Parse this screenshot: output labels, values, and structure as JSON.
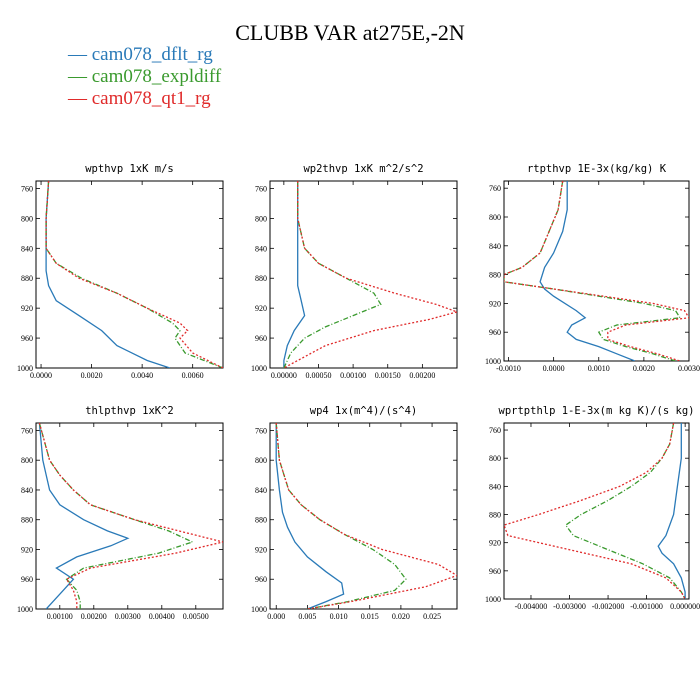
{
  "title": "CLUBB VAR at275E,-2N",
  "legend": [
    {
      "name": "cam078_dflt_rg",
      "color": "#2a7ab8"
    },
    {
      "name": "cam078_expldiff",
      "color": "#3a9a2e"
    },
    {
      "name": "cam078_qt1_rg",
      "color": "#e02b2b"
    }
  ],
  "chart_data": [
    {
      "type": "line",
      "title": "wpthvp  1xK m/s",
      "xlim": [
        -0.0002,
        0.0072
      ],
      "ylim": [
        1000,
        750
      ],
      "x_ticks": [
        "0.0000",
        "0.0020",
        "0.0040",
        "0.0060"
      ],
      "x_tick_values": [
        0,
        0.002,
        0.004,
        0.006
      ],
      "y_ticks": [
        "760",
        "800",
        "840",
        "880",
        "920",
        "960",
        "1000"
      ],
      "series": [
        {
          "name": "cam078_dflt_rg",
          "y": [
            750,
            800,
            840,
            870,
            890,
            910,
            930,
            950,
            970,
            990,
            1000
          ],
          "x": [
            0.0003,
            0.0002,
            0.0002,
            0.0002,
            0.0003,
            0.0006,
            0.0015,
            0.0024,
            0.003,
            0.0042,
            0.0051
          ]
        },
        {
          "name": "cam078_expldiff",
          "y": [
            750,
            800,
            840,
            860,
            880,
            900,
            920,
            940,
            950,
            960,
            980,
            1000
          ],
          "x": [
            0.0003,
            0.0002,
            0.0002,
            0.0006,
            0.0016,
            0.003,
            0.0042,
            0.0052,
            0.0055,
            0.0053,
            0.0057,
            0.0072
          ]
        },
        {
          "name": "cam078_qt1_rg",
          "y": [
            750,
            800,
            840,
            860,
            880,
            900,
            920,
            940,
            950,
            960,
            980,
            1000
          ],
          "x": [
            0.0003,
            0.0002,
            0.0002,
            0.0006,
            0.0015,
            0.003,
            0.0042,
            0.0055,
            0.0058,
            0.0055,
            0.006,
            0.0072
          ]
        }
      ]
    },
    {
      "type": "line",
      "title": "wp2thvp  1xK m^2/s^2",
      "xlim": [
        -0.0002,
        0.0025
      ],
      "ylim": [
        1000,
        750
      ],
      "x_ticks": [
        "0.00000",
        "0.00050",
        "0.00100",
        "0.00150",
        "0.00200"
      ],
      "x_tick_values": [
        0,
        0.0005,
        0.001,
        0.0015,
        0.002
      ],
      "y_ticks": [
        "760",
        "800",
        "840",
        "880",
        "920",
        "960",
        "1000"
      ],
      "series": [
        {
          "name": "cam078_dflt_rg",
          "y": [
            750,
            800,
            840,
            870,
            890,
            910,
            930,
            950,
            970,
            990,
            1000
          ],
          "x": [
            0.0002,
            0.0002,
            0.0002,
            0.0002,
            0.0002,
            0.00025,
            0.0003,
            0.00015,
            5e-05,
            0.0,
            0.0
          ]
        },
        {
          "name": "cam078_expldiff",
          "y": [
            750,
            800,
            840,
            860,
            880,
            900,
            915,
            930,
            945,
            960,
            980,
            1000
          ],
          "x": [
            0.0002,
            0.0002,
            0.0003,
            0.0005,
            0.0009,
            0.0013,
            0.0014,
            0.001,
            0.0006,
            0.0003,
            0.0001,
            0.0
          ]
        },
        {
          "name": "cam078_qt1_rg",
          "y": [
            750,
            800,
            840,
            860,
            880,
            900,
            915,
            925,
            935,
            950,
            970,
            990,
            1000
          ],
          "x": [
            0.0002,
            0.0002,
            0.0003,
            0.0005,
            0.0009,
            0.0016,
            0.0022,
            0.0025,
            0.0021,
            0.0013,
            0.0006,
            0.0002,
            0.0
          ]
        }
      ]
    },
    {
      "type": "line",
      "title": "rtpthvp  1E-3x(kg/kg) K",
      "xlim": [
        -0.0011,
        0.003
      ],
      "ylim": [
        1000,
        750
      ],
      "x_ticks": [
        "-0.0010",
        "0.0000",
        "0.0010",
        "0.0020",
        "0.0030"
      ],
      "x_tick_values": [
        -0.001,
        0,
        0.001,
        0.002,
        0.003
      ],
      "y_ticks": [
        "760",
        "800",
        "840",
        "880",
        "920",
        "960",
        "1000"
      ],
      "series": [
        {
          "name": "cam078_dflt_rg",
          "y": [
            750,
            790,
            820,
            850,
            870,
            890,
            900,
            910,
            930,
            940,
            950,
            960,
            970,
            980,
            990,
            1000
          ],
          "x": [
            0.0003,
            0.0003,
            0.0002,
            0.0,
            -0.0002,
            -0.0003,
            -0.0002,
            0.0,
            0.0005,
            0.0007,
            0.0004,
            0.0003,
            0.0005,
            0.001,
            0.0014,
            0.0018
          ]
        },
        {
          "name": "cam078_expldiff",
          "y": [
            750,
            790,
            820,
            850,
            870,
            880,
            890,
            900,
            910,
            920,
            930,
            940,
            950,
            960,
            970,
            980,
            990,
            1000
          ],
          "x": [
            0.0002,
            0.0001,
            -0.0001,
            -0.0003,
            -0.0007,
            -0.0011,
            -0.0011,
            0.0,
            0.001,
            0.002,
            0.0027,
            0.0028,
            0.0014,
            0.001,
            0.0011,
            0.0016,
            0.0022,
            0.0027
          ]
        },
        {
          "name": "cam078_qt1_rg",
          "y": [
            750,
            790,
            820,
            850,
            870,
            880,
            890,
            900,
            910,
            920,
            930,
            940,
            950,
            960,
            970,
            980,
            990,
            1000
          ],
          "x": [
            0.0002,
            0.0001,
            -0.0001,
            -0.0003,
            -0.0007,
            -0.0011,
            -0.0011,
            0.0,
            0.0011,
            0.0022,
            0.0029,
            0.003,
            0.0016,
            0.0012,
            0.0012,
            0.0017,
            0.0023,
            0.0028
          ]
        }
      ]
    },
    {
      "type": "line",
      "title": "thlpthvp  1xK^2",
      "xlim": [
        0.0003,
        0.0058
      ],
      "ylim": [
        1000,
        750
      ],
      "x_ticks": [
        "0.00100",
        "0.00200",
        "0.00300",
        "0.00400",
        "0.00500"
      ],
      "x_tick_values": [
        0.001,
        0.002,
        0.003,
        0.004,
        0.005
      ],
      "y_ticks": [
        "760",
        "800",
        "840",
        "880",
        "920",
        "960",
        "1000"
      ],
      "series": [
        {
          "name": "cam078_dflt_rg",
          "y": [
            750,
            800,
            820,
            840,
            860,
            880,
            895,
            905,
            915,
            930,
            945,
            960,
            975,
            990,
            1000
          ],
          "x": [
            0.0004,
            0.0005,
            0.0006,
            0.0007,
            0.001,
            0.0017,
            0.0024,
            0.003,
            0.0025,
            0.0015,
            0.0009,
            0.0014,
            0.0011,
            0.0008,
            0.0006
          ]
        },
        {
          "name": "cam078_expldiff",
          "y": [
            750,
            800,
            820,
            840,
            860,
            880,
            895,
            910,
            925,
            945,
            960,
            975,
            990,
            1000
          ],
          "x": [
            0.0004,
            0.0007,
            0.001,
            0.0014,
            0.0019,
            0.0032,
            0.0042,
            0.0049,
            0.0039,
            0.0017,
            0.0012,
            0.0015,
            0.0016,
            0.0016
          ]
        },
        {
          "name": "cam078_qt1_rg",
          "y": [
            750,
            800,
            820,
            840,
            860,
            880,
            895,
            910,
            925,
            945,
            960,
            975,
            990,
            1000
          ],
          "x": [
            0.0004,
            0.0007,
            0.001,
            0.0014,
            0.0019,
            0.0032,
            0.0045,
            0.0058,
            0.0044,
            0.0019,
            0.0012,
            0.0014,
            0.0015,
            0.0015
          ]
        }
      ]
    },
    {
      "type": "line",
      "title": "wp4  1x(m^4)/(s^4)",
      "xlim": [
        -0.001,
        0.029
      ],
      "ylim": [
        1000,
        750
      ],
      "x_ticks": [
        "0.000",
        "0.005",
        "0.010",
        "0.015",
        "0.020",
        "0.025"
      ],
      "x_tick_values": [
        0,
        0.005,
        0.01,
        0.015,
        0.02,
        0.025
      ],
      "y_ticks": [
        "760",
        "800",
        "840",
        "880",
        "920",
        "960",
        "1000"
      ],
      "series": [
        {
          "name": "cam078_dflt_rg",
          "y": [
            750,
            800,
            840,
            870,
            890,
            910,
            930,
            950,
            965,
            980,
            990,
            1000
          ],
          "x": [
            0.0,
            0.0,
            0.0005,
            0.001,
            0.0018,
            0.003,
            0.005,
            0.008,
            0.0105,
            0.0108,
            0.008,
            0.005
          ]
        },
        {
          "name": "cam078_expldiff",
          "y": [
            750,
            800,
            840,
            860,
            880,
            900,
            920,
            940,
            960,
            975,
            990,
            1000
          ],
          "x": [
            0.0,
            0.0005,
            0.002,
            0.004,
            0.007,
            0.011,
            0.0155,
            0.019,
            0.0208,
            0.019,
            0.0115,
            0.005
          ]
        },
        {
          "name": "cam078_qt1_rg",
          "y": [
            750,
            800,
            840,
            860,
            880,
            900,
            920,
            940,
            955,
            970,
            990,
            1000
          ],
          "x": [
            0.0,
            0.0005,
            0.002,
            0.004,
            0.007,
            0.011,
            0.017,
            0.026,
            0.029,
            0.024,
            0.012,
            0.005
          ]
        }
      ]
    },
    {
      "type": "line",
      "title": "wprtpthlp  1-E-3x(m kg K)/(s kg)",
      "xlim": [
        -0.0047,
        0.0001
      ],
      "ylim": [
        1000,
        750
      ],
      "x_ticks": [
        "-0.004000",
        "-0.003000",
        "-0.002000",
        "-0.001000",
        "0.000000"
      ],
      "x_tick_values": [
        -0.004,
        -0.003,
        -0.002,
        -0.001,
        0
      ],
      "y_ticks": [
        "760",
        "800",
        "840",
        "880",
        "920",
        "960",
        "1000"
      ],
      "series": [
        {
          "name": "cam078_dflt_rg",
          "y": [
            750,
            800,
            840,
            880,
            910,
            925,
            935,
            950,
            970,
            990,
            1000
          ],
          "x": [
            -0.0001,
            -0.0001,
            -0.0002,
            -0.0003,
            -0.0005,
            -0.0007,
            -0.0006,
            -0.0003,
            -0.0001,
            0.0,
            0.0
          ]
        },
        {
          "name": "cam078_expldiff",
          "y": [
            750,
            780,
            800,
            820,
            840,
            860,
            880,
            895,
            910,
            930,
            950,
            970,
            990,
            1000
          ],
          "x": [
            -0.0003,
            -0.0004,
            -0.0006,
            -0.0009,
            -0.0014,
            -0.002,
            -0.0027,
            -0.0031,
            -0.0029,
            -0.002,
            -0.0011,
            -0.0004,
            -0.0001,
            0.0
          ]
        },
        {
          "name": "cam078_qt1_rg",
          "y": [
            750,
            780,
            800,
            820,
            840,
            860,
            880,
            895,
            910,
            930,
            950,
            970,
            990,
            1000
          ],
          "x": [
            -0.0003,
            -0.0004,
            -0.0006,
            -0.001,
            -0.0017,
            -0.0027,
            -0.0038,
            -0.0047,
            -0.0046,
            -0.003,
            -0.0014,
            -0.0005,
            -0.0001,
            0.0
          ]
        }
      ]
    }
  ]
}
